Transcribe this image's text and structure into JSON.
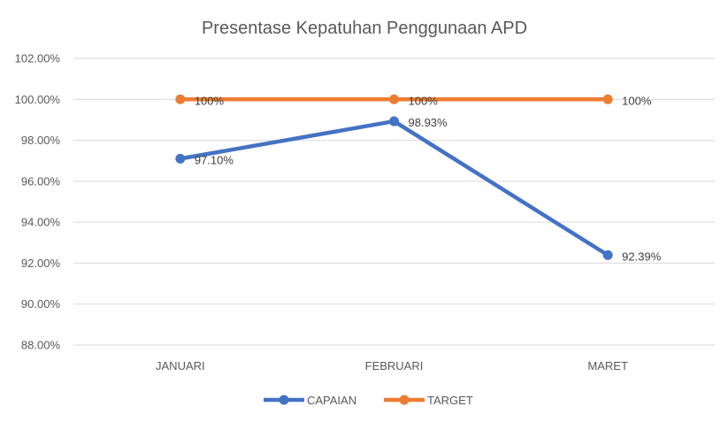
{
  "chart_data": {
    "type": "line",
    "title": "Presentase Kepatuhan Penggunaan APD",
    "categories": [
      "JANUARI",
      "FEBRUARI",
      "MARET"
    ],
    "ylim": [
      88,
      102
    ],
    "yticks": [
      88,
      90,
      92,
      94,
      96,
      98,
      100,
      102
    ],
    "ytick_labels": [
      "88.00%",
      "90.00%",
      "92.00%",
      "94.00%",
      "96.00%",
      "98.00%",
      "100.00%",
      "102.00%"
    ],
    "grid": true,
    "legend_position": "bottom",
    "series": [
      {
        "name": "CAPAIAN",
        "color": "#4472C4",
        "values": [
          97.1,
          98.93,
          92.39
        ],
        "labels": [
          "97.10%",
          "98.93%",
          "92.39%"
        ]
      },
      {
        "name": "TARGET",
        "color": "#ED7D31",
        "values": [
          100,
          100,
          100
        ],
        "labels": [
          "100%",
          "100%",
          "100%"
        ]
      }
    ]
  }
}
